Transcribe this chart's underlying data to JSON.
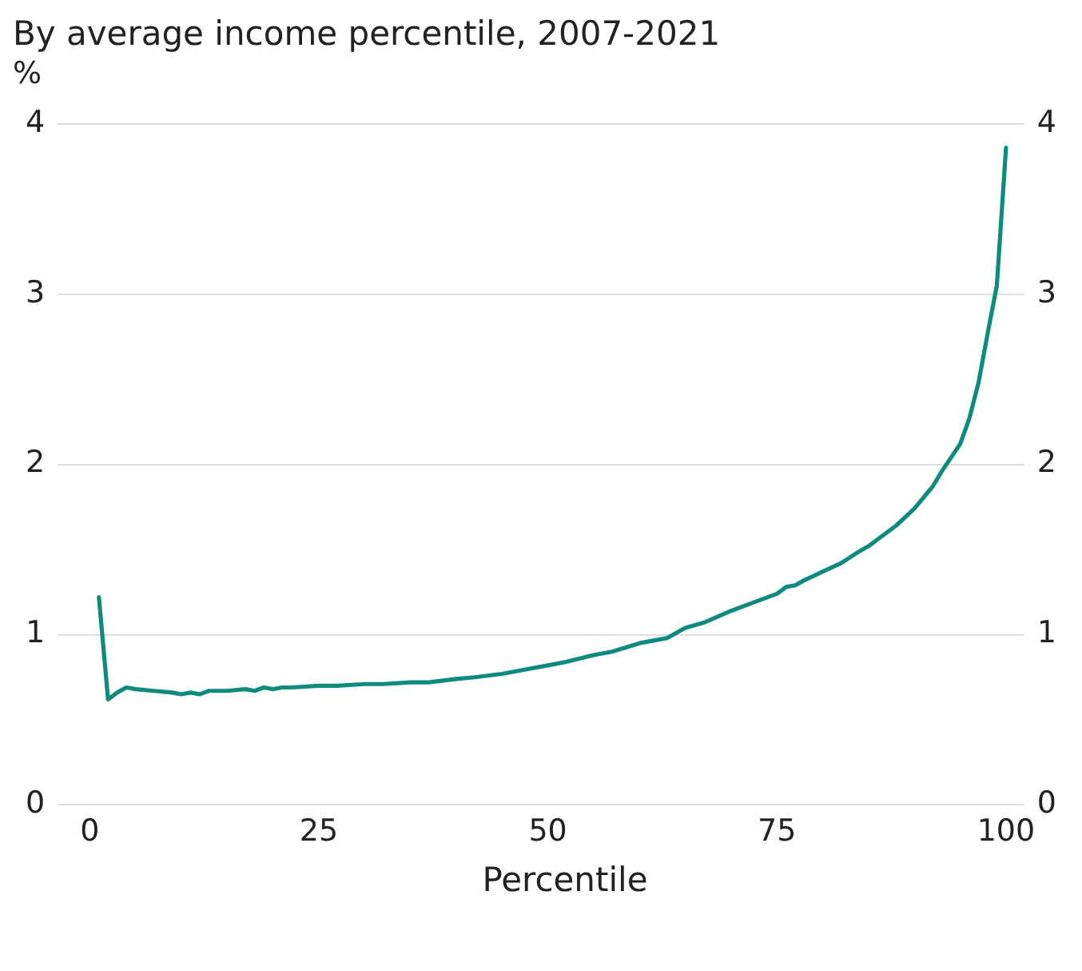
{
  "chart_data": {
    "type": "line",
    "title": "By average income percentile, 2007-2021",
    "ylabel": "%",
    "xlabel": "Percentile",
    "series": [
      {
        "color": "#0e8a7e",
        "x": [
          1,
          2,
          3,
          4,
          5,
          7,
          9,
          10,
          11,
          12,
          13,
          15,
          17,
          18,
          19,
          20,
          21,
          22,
          25,
          27,
          30,
          32,
          35,
          37,
          40,
          42,
          45,
          47,
          50,
          52,
          55,
          57,
          60,
          62,
          63,
          65,
          67,
          70,
          72,
          75,
          76,
          77,
          78,
          80,
          82,
          84,
          85,
          86,
          88,
          90,
          92,
          93,
          94,
          95,
          96,
          97,
          98,
          99,
          100
        ],
        "values": [
          1.22,
          0.62,
          0.66,
          0.69,
          0.68,
          0.67,
          0.66,
          0.65,
          0.66,
          0.65,
          0.67,
          0.67,
          0.68,
          0.67,
          0.69,
          0.68,
          0.69,
          0.69,
          0.7,
          0.7,
          0.71,
          0.71,
          0.72,
          0.72,
          0.74,
          0.75,
          0.77,
          0.79,
          0.82,
          0.84,
          0.88,
          0.9,
          0.95,
          0.97,
          0.98,
          1.04,
          1.07,
          1.14,
          1.18,
          1.24,
          1.28,
          1.29,
          1.32,
          1.37,
          1.42,
          1.49,
          1.52,
          1.56,
          1.64,
          1.74,
          1.87,
          1.96,
          2.04,
          2.12,
          2.27,
          2.48,
          2.77,
          3.05,
          3.86
        ]
      }
    ],
    "xlim": [
      -3.5,
      102
    ],
    "xticks": [
      0,
      25,
      50,
      75,
      100
    ],
    "ylim": [
      0,
      4
    ],
    "yticks": [
      0,
      1,
      2,
      3,
      4
    ],
    "y2lim": [
      0,
      4
    ],
    "y2ticks": [
      0,
      1,
      2,
      3,
      4
    ],
    "grid": "y",
    "legend": false,
    "marker": "none",
    "line_style": "solid"
  }
}
